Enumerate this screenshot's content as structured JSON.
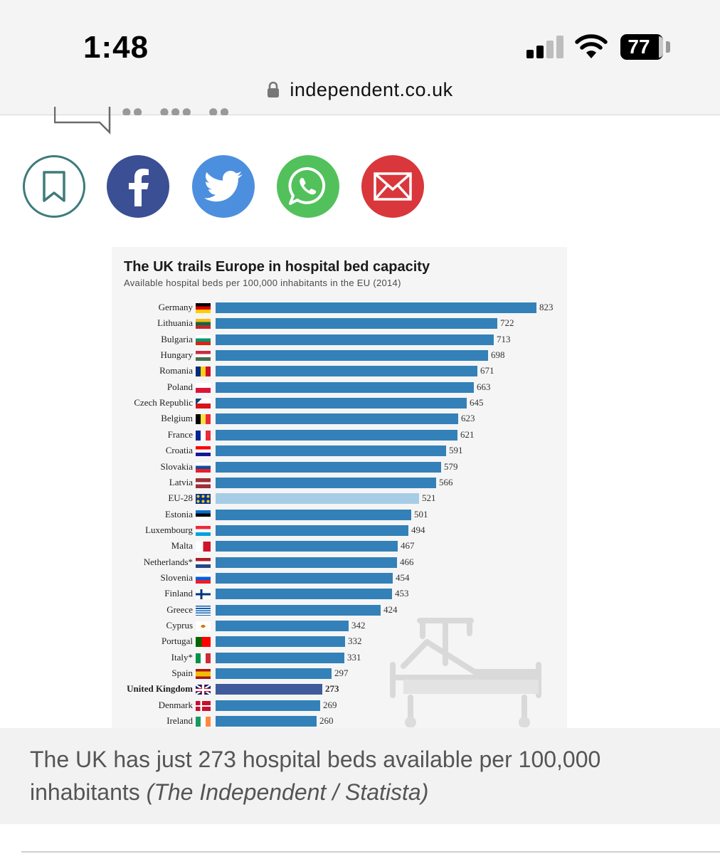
{
  "status_bar": {
    "time": "1:48",
    "battery_level": "77"
  },
  "browser": {
    "url": "independent.co.uk"
  },
  "share_buttons": [
    {
      "name": "bookmark",
      "color": "#ffffff",
      "border": "#3e7b7b"
    },
    {
      "name": "facebook",
      "color": "#3b4f94"
    },
    {
      "name": "twitter",
      "color": "#4c8fde"
    },
    {
      "name": "whatsapp",
      "color": "#52c15b"
    },
    {
      "name": "email",
      "color": "#d9373b"
    }
  ],
  "chart_data": {
    "type": "bar",
    "orientation": "horizontal",
    "title": "The UK trails Europe in hospital bed capacity",
    "subtitle": "Available hospital beds per 100,000 inhabitants in the EU (2014)",
    "xlabel": "",
    "ylabel": "",
    "xlim": [
      0,
      823
    ],
    "grid": false,
    "bar_color": "#3381b8",
    "highlight_colors": {
      "EU-28": "#a7cce6",
      "United Kingdom": "#3f5b9b"
    },
    "categories": [
      "Germany",
      "Lithuania",
      "Bulgaria",
      "Hungary",
      "Romania",
      "Poland",
      "Czech Republic",
      "Belgium",
      "France",
      "Croatia",
      "Slovakia",
      "Latvia",
      "EU-28",
      "Estonia",
      "Luxembourg",
      "Malta",
      "Netherlands",
      "Slovenia",
      "Finland",
      "Greece",
      "Cyprus",
      "Portugal",
      "Italy",
      "Spain",
      "United Kingdom",
      "Denmark",
      "Ireland"
    ],
    "footnote_marks": {
      "Netherlands": "*",
      "Italy": "*"
    },
    "values": [
      823,
      722,
      713,
      698,
      671,
      663,
      645,
      623,
      621,
      591,
      579,
      566,
      521,
      501,
      494,
      467,
      466,
      454,
      453,
      424,
      342,
      332,
      331,
      297,
      273,
      269,
      260
    ]
  },
  "caption": {
    "text": "The UK has just 273 hospital beds available per 100,000 inhabitants",
    "credit": "(The Independent / Statista)"
  }
}
